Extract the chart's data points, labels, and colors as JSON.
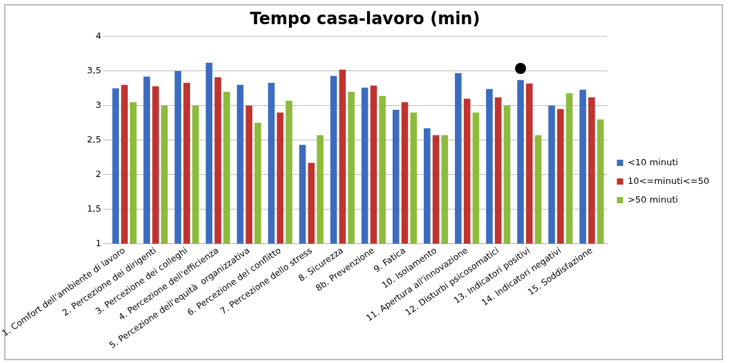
{
  "chart_data": {
    "type": "bar",
    "title": "Tempo casa-lavoro (min)",
    "categories": [
      "1. Comfort dell'ambiente di lavoro",
      "2. Percezione dei dirigenti",
      "3. Percezione dei colleghi",
      "4. Percezione dell'efficienza",
      "5. Percezione dell'equità  organizzativa",
      "6. Percezione del conflitto",
      "7. Percezione dello stress",
      "8. Sicurezza",
      "8b. Prevenzione",
      "9. Fatica",
      "10. Isolamento",
      "11. Apertura all'innovazione",
      "12. Disturbi psicosomatici",
      "13. Indicatori positivi",
      "14. Indicatori negativi",
      "15. Soddisfazione"
    ],
    "series": [
      {
        "name": "<10 minuti",
        "color": "#3b6cc0",
        "values": [
          3.25,
          3.42,
          3.5,
          3.62,
          3.3,
          3.33,
          2.43,
          3.43,
          3.26,
          2.94,
          2.67,
          3.47,
          3.24,
          3.37,
          3.0,
          3.23
        ]
      },
      {
        "name": "10<=minuti<=50",
        "color": "#c0332e",
        "values": [
          3.3,
          3.28,
          3.33,
          3.41,
          3.0,
          2.9,
          2.17,
          3.52,
          3.29,
          3.05,
          2.57,
          3.1,
          3.12,
          3.32,
          2.95,
          3.12
        ]
      },
      {
        "name": ">50 minuti",
        "color": "#8dbb3c",
        "values": [
          3.05,
          3.0,
          3.0,
          3.2,
          2.75,
          3.07,
          2.57,
          3.2,
          3.14,
          2.9,
          2.57,
          2.9,
          3.0,
          2.57,
          3.18,
          2.8
        ]
      }
    ],
    "ylim": [
      1,
      4
    ],
    "yticks": [
      1,
      {
        "value": 1.5,
        "label": "1,5"
      },
      2,
      {
        "value": 2.5,
        "label": "2,5"
      },
      3,
      {
        "value": 3.5,
        "label": "3,5"
      },
      4
    ],
    "grid": "y",
    "legend": "right"
  }
}
